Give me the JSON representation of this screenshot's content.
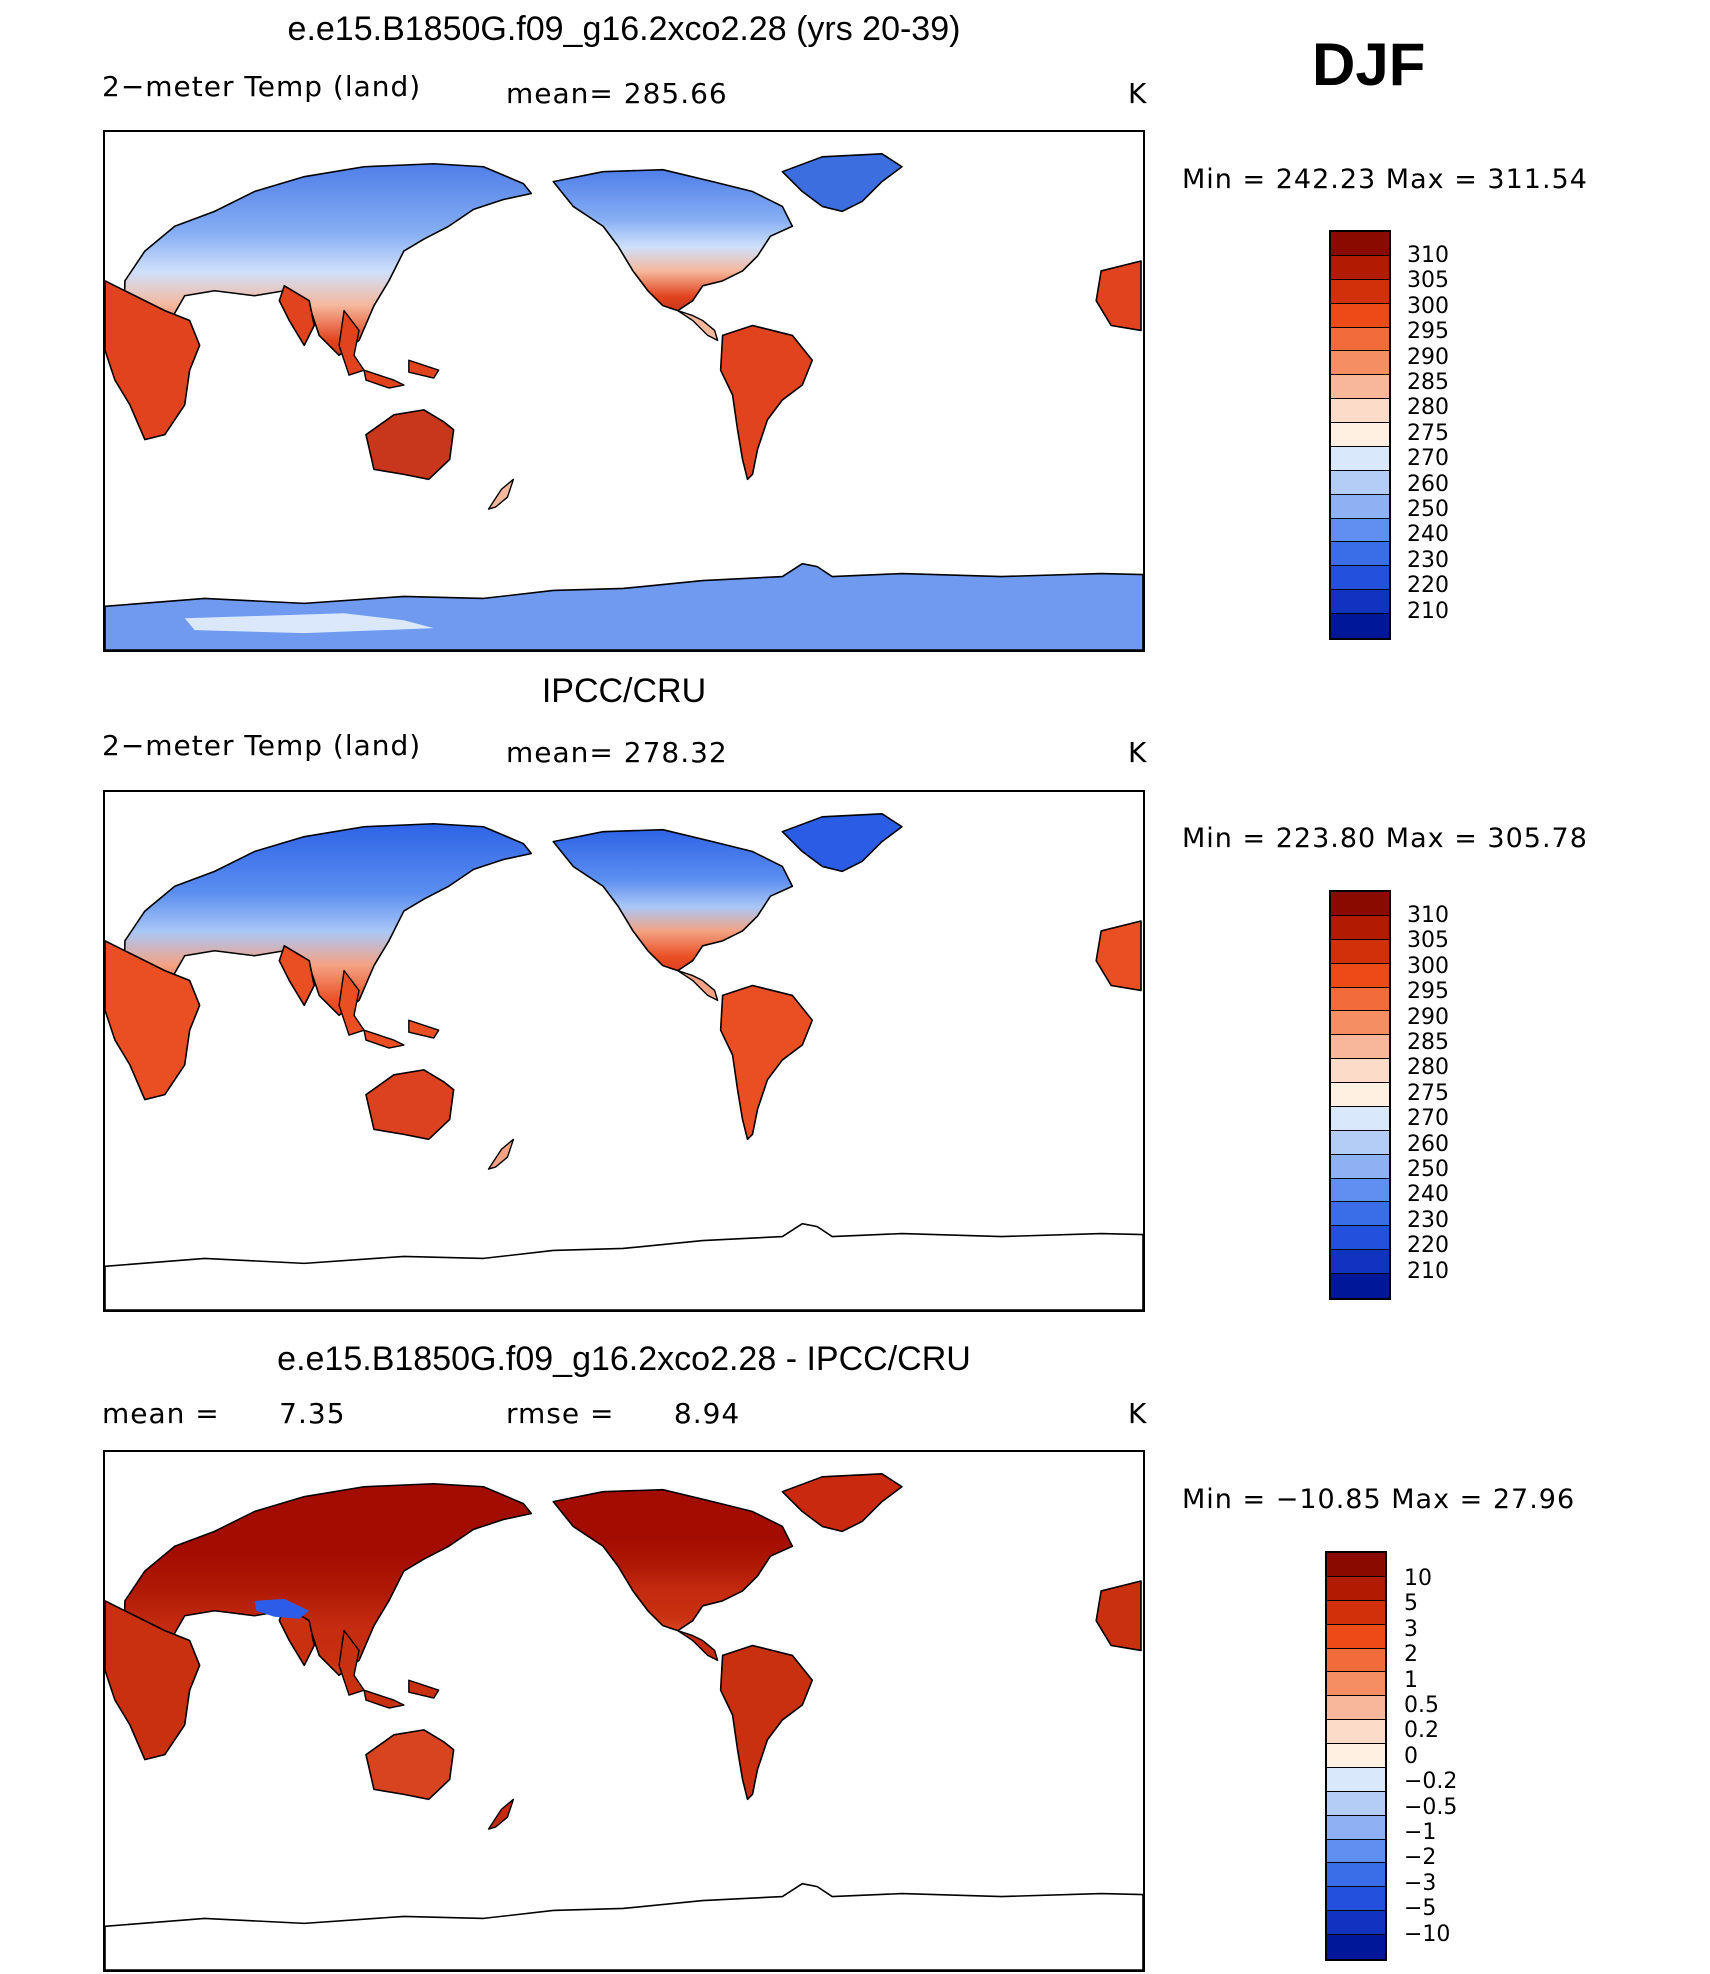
{
  "season": "DJF",
  "panels": [
    {
      "title": "e.e15.B1850G.f09_g16.2xco2.28 (yrs 20-39)",
      "left_label": "2−meter Temp (land)",
      "center_label": "mean= 285.66",
      "unit": "K",
      "min_label": "Min",
      "min_value": "242.23",
      "max_label": "Max",
      "max_value": "311.54",
      "antarctica": true,
      "land_colors": {
        "arctic": "#4f7ee8",
        "boreal": "#86aef4",
        "midlat": "#cfe0fb",
        "subtrop": "#f6b89d",
        "trop": "#e1431e",
        "desert": "#c8371b",
        "greenland": "#3c6ee0",
        "antarctic": "#6f9af0",
        "ant_coast": "#dbe8fc"
      }
    },
    {
      "title": "IPCC/CRU",
      "left_label": "2−meter Temp (land)",
      "center_label": "mean= 278.32",
      "unit": "K",
      "min_label": "Min",
      "min_value": "223.80",
      "max_label": "Max",
      "max_value": "305.78",
      "antarctica": false,
      "land_colors": {
        "arctic": "#2e63e6",
        "boreal": "#5b8ef0",
        "midlat": "#aac7f6",
        "subtrop": "#f4a283",
        "trop": "#ea4f24",
        "desert": "#dd4220",
        "greenland": "#2a5de4",
        "antarctic": "#ffffff",
        "ant_coast": "#ffffff"
      }
    },
    {
      "title": "e.e15.B1850G.f09_g16.2xco2.28 - IPCC/CRU",
      "left_label": "mean =      7.35",
      "center_label": "rmse =      8.94",
      "unit": "K",
      "min_label": "Min",
      "min_value": "−10.85",
      "max_label": "Max",
      "max_value": "27.96",
      "antarctica": false,
      "land_colors": {
        "arctic": "#a30c00",
        "boreal": "#a30c00",
        "midlat": "#b01a05",
        "subtrop": "#c42b10",
        "trop": "#c8300f",
        "desert": "#d84420",
        "greenland": "#c92a0f",
        "antarctic": "#ffffff",
        "ant_coast": "#ffffff",
        "tibet": "#2d5de8"
      }
    }
  ],
  "colorbars": [
    {
      "labels": [
        "310",
        "305",
        "300",
        "295",
        "290",
        "285",
        "280",
        "275",
        "270",
        "260",
        "250",
        "240",
        "230",
        "220",
        "210"
      ],
      "colors": [
        "#8b0a00",
        "#b31a02",
        "#d2300a",
        "#ec4a17",
        "#f26b3b",
        "#f58f63",
        "#f8b79a",
        "#fcdcc9",
        "#fff0e2",
        "#d9e8fb",
        "#b3cdf7",
        "#8eb1f4",
        "#5f8ff0",
        "#3a6ee8",
        "#2450de",
        "#1133c0",
        "#00179a"
      ]
    },
    {
      "labels": [
        "310",
        "305",
        "300",
        "295",
        "290",
        "285",
        "280",
        "275",
        "270",
        "260",
        "250",
        "240",
        "230",
        "220",
        "210"
      ],
      "colors": [
        "#8b0a00",
        "#b31a02",
        "#d2300a",
        "#ec4a17",
        "#f26b3b",
        "#f58f63",
        "#f8b79a",
        "#fcdcc9",
        "#fff0e2",
        "#d9e8fb",
        "#b3cdf7",
        "#8eb1f4",
        "#5f8ff0",
        "#3a6ee8",
        "#2450de",
        "#1133c0",
        "#00179a"
      ]
    },
    {
      "labels": [
        "10",
        "5",
        "3",
        "2",
        "1",
        "0.5",
        "0.2",
        "0",
        "−0.2",
        "−0.5",
        "−1",
        "−2",
        "−3",
        "−5",
        "−10"
      ],
      "colors": [
        "#8b0a00",
        "#b31a02",
        "#d2300a",
        "#ec4a17",
        "#f26b3b",
        "#f58f63",
        "#f8b79a",
        "#fcdcc9",
        "#fff0e2",
        "#d9e8fb",
        "#b3cdf7",
        "#8eb1f4",
        "#5f8ff0",
        "#3a6ee8",
        "#2450de",
        "#1133c0",
        "#00179a"
      ]
    }
  ]
}
